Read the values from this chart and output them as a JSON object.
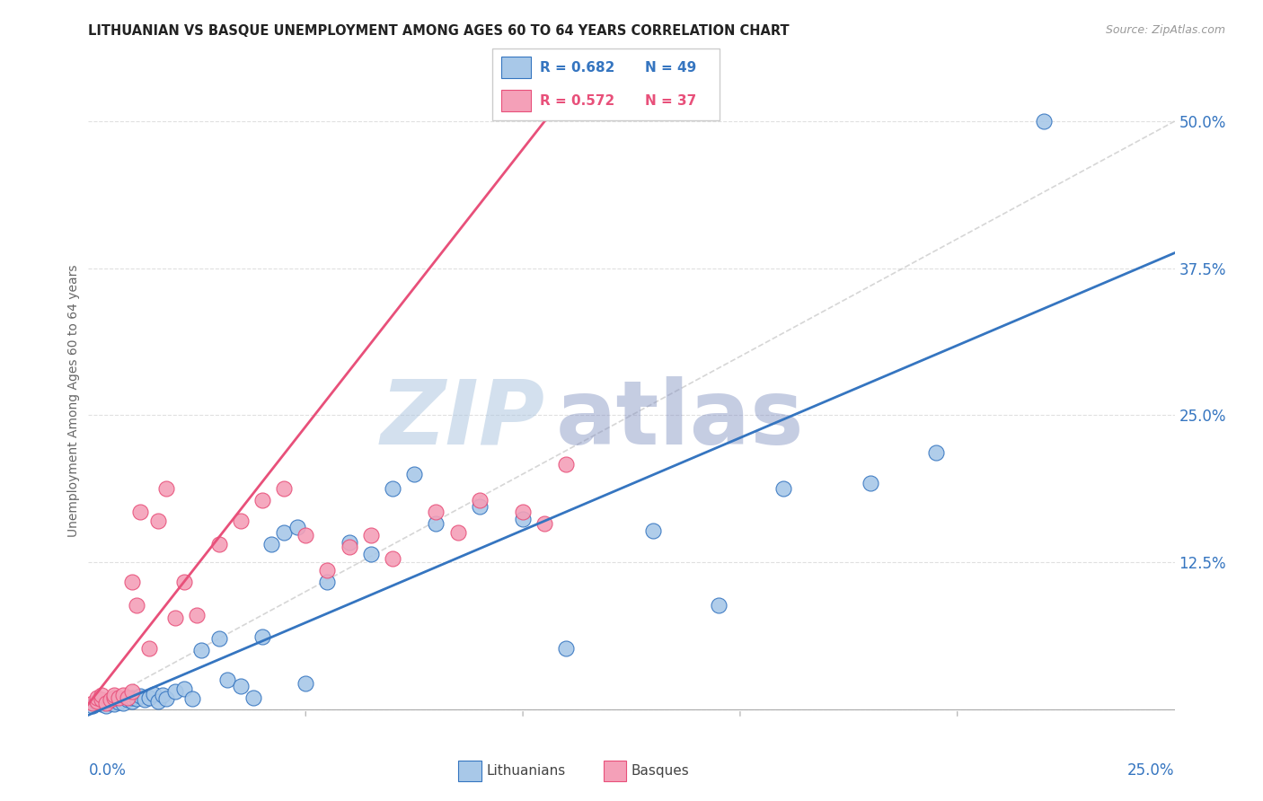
{
  "title": "LITHUANIAN VS BASQUE UNEMPLOYMENT AMONG AGES 60 TO 64 YEARS CORRELATION CHART",
  "source": "Source: ZipAtlas.com",
  "ylabel": "Unemployment Among Ages 60 to 64 years",
  "xlim": [
    0,
    0.25
  ],
  "ylim": [
    -0.01,
    0.535
  ],
  "yticks": [
    0.0,
    0.125,
    0.25,
    0.375,
    0.5
  ],
  "ytick_labels": [
    "",
    "12.5%",
    "25.0%",
    "37.5%",
    "50.0%"
  ],
  "xticks": [
    0.0,
    0.05,
    0.1,
    0.15,
    0.2,
    0.25
  ],
  "legend_r_blue": "R = 0.682",
  "legend_n_blue": "N = 49",
  "legend_r_pink": "R = 0.572",
  "legend_n_pink": "N = 37",
  "blue_color": "#a8c8e8",
  "pink_color": "#f4a0b8",
  "blue_line_color": "#3575c0",
  "pink_line_color": "#e8507a",
  "watermark_zip_color": "#b0c8e0",
  "watermark_atlas_color": "#8090c0",
  "blue_scatter_x": [
    0.001,
    0.002,
    0.003,
    0.003,
    0.004,
    0.005,
    0.005,
    0.006,
    0.007,
    0.008,
    0.009,
    0.01,
    0.01,
    0.011,
    0.012,
    0.013,
    0.014,
    0.015,
    0.016,
    0.017,
    0.018,
    0.02,
    0.022,
    0.024,
    0.026,
    0.03,
    0.032,
    0.035,
    0.038,
    0.04,
    0.042,
    0.045,
    0.048,
    0.05,
    0.055,
    0.06,
    0.065,
    0.07,
    0.075,
    0.08,
    0.09,
    0.1,
    0.11,
    0.13,
    0.145,
    0.16,
    0.18,
    0.195,
    0.22
  ],
  "blue_scatter_y": [
    0.003,
    0.005,
    0.004,
    0.007,
    0.003,
    0.005,
    0.008,
    0.004,
    0.006,
    0.005,
    0.008,
    0.007,
    0.01,
    0.009,
    0.011,
    0.008,
    0.01,
    0.013,
    0.007,
    0.012,
    0.009,
    0.015,
    0.017,
    0.009,
    0.05,
    0.06,
    0.025,
    0.02,
    0.01,
    0.062,
    0.14,
    0.15,
    0.155,
    0.022,
    0.108,
    0.142,
    0.132,
    0.188,
    0.2,
    0.158,
    0.172,
    0.162,
    0.052,
    0.152,
    0.088,
    0.188,
    0.192,
    0.218,
    0.5
  ],
  "pink_scatter_x": [
    0.001,
    0.002,
    0.002,
    0.003,
    0.003,
    0.004,
    0.005,
    0.006,
    0.006,
    0.007,
    0.008,
    0.009,
    0.01,
    0.01,
    0.011,
    0.012,
    0.014,
    0.016,
    0.018,
    0.02,
    0.022,
    0.025,
    0.03,
    0.035,
    0.04,
    0.045,
    0.05,
    0.055,
    0.06,
    0.065,
    0.07,
    0.08,
    0.085,
    0.09,
    0.1,
    0.105,
    0.11
  ],
  "pink_scatter_y": [
    0.005,
    0.007,
    0.01,
    0.008,
    0.012,
    0.005,
    0.008,
    0.01,
    0.012,
    0.01,
    0.012,
    0.01,
    0.015,
    0.108,
    0.088,
    0.168,
    0.052,
    0.16,
    0.188,
    0.078,
    0.108,
    0.08,
    0.14,
    0.16,
    0.178,
    0.188,
    0.148,
    0.118,
    0.138,
    0.148,
    0.128,
    0.168,
    0.15,
    0.178,
    0.168,
    0.158,
    0.208
  ],
  "blue_trend_x": [
    0.0,
    0.25
  ],
  "blue_trend_y": [
    -0.005,
    0.388
  ],
  "pink_trend_x": [
    -0.002,
    0.105
  ],
  "pink_trend_y": [
    -0.005,
    0.5
  ],
  "ref_line_x": [
    0.0,
    0.25
  ],
  "ref_line_y": [
    0.0,
    0.5
  ]
}
